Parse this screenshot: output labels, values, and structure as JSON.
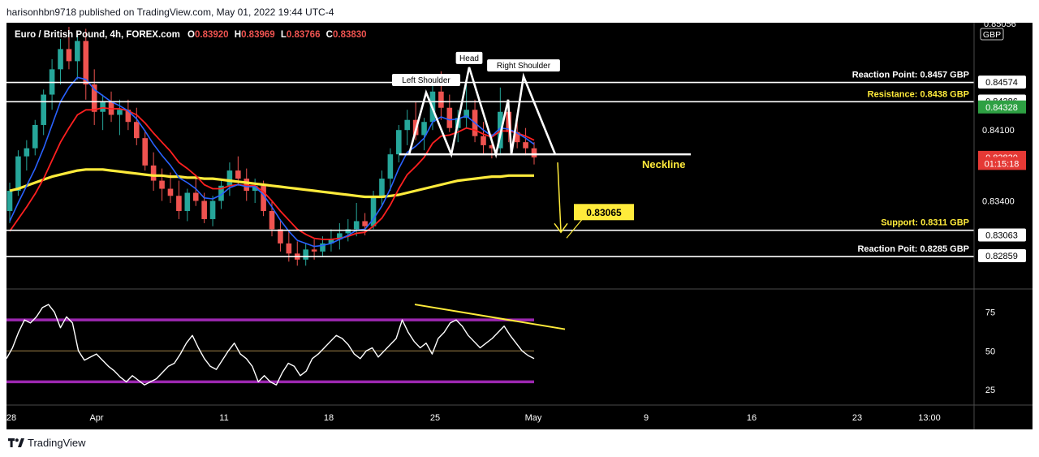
{
  "header": {
    "publish_line": "harisonhbn9718 published on TradingView.com, May 01, 2022 19:44 UTC-4"
  },
  "footer": {
    "brand": "TradingView"
  },
  "legend": {
    "symbol": "Euro / British Pound, 4h, FOREX.com",
    "o_label": "O",
    "o_value": "0.83920",
    "h_label": "H",
    "h_value": "0.83969",
    "l_label": "L",
    "l_value": "0.83766",
    "c_label": "C",
    "c_value": "0.83830"
  },
  "colors": {
    "up": "#26a69a",
    "down": "#ef5350",
    "ema_fast": "#2962ff",
    "ema_mid": "#ff2020",
    "ma_slow": "#ffeb3b",
    "level_line": "#ffffff",
    "rsi_band": "#9c27b0",
    "annotation_yellow": "#ffeb3b",
    "resistance_badge": "#2ea043",
    "price_badge": "#e53935"
  },
  "chart_data": [
    {
      "type": "candlestick",
      "symbol": "Euro / British Pound",
      "timeframe": "4h",
      "exchange": "FOREX.com",
      "price_axis_ticks": [
        "0.84100",
        "0.83400"
      ],
      "price_axis_labels": [
        {
          "text": "0.84574",
          "value": 0.84574,
          "style": "plain"
        },
        {
          "text": "0.84386",
          "value": 0.84386,
          "style": "plain"
        },
        {
          "text": "0.84328",
          "value": 0.84328,
          "style": "green"
        },
        {
          "text": "0.83830",
          "value": 0.8383,
          "style": "red"
        },
        {
          "text": "01:15:18",
          "value": 0.8377,
          "style": "red"
        },
        {
          "text": "0.83063",
          "value": 0.83063,
          "style": "plain"
        },
        {
          "text": "0.82859",
          "value": 0.82859,
          "style": "plain"
        }
      ],
      "price_axis_top_partial": "0.85056",
      "currency_tag": "GBP",
      "ylim": [
        0.8253,
        0.8516
      ],
      "x_ticks": [
        "28",
        "Apr",
        "11",
        "18",
        "25",
        "May",
        "9",
        "16",
        "23",
        "13:00"
      ],
      "levels": [
        {
          "label": "Reaction Point: 0.8457 GBP",
          "value": 0.8457,
          "color": "white"
        },
        {
          "label": "Resistance: 0.8438 GBP",
          "value": 0.8438,
          "color": "yellow"
        },
        {
          "label": "Support: 0.8311 GBP",
          "value": 0.8311,
          "color": "yellow"
        },
        {
          "label": "Reaction Poit: 0.8285 GBP",
          "value": 0.8285,
          "color": "white"
        }
      ],
      "pattern": {
        "left_shoulder": "Left Shoulder",
        "head": "Head",
        "right_shoulder": "Right Shoulder",
        "neckline": "Neckline",
        "neckline_value": 0.8386,
        "target_label": "0.83065",
        "target_value": 0.83065
      },
      "candles": [
        [
          0.833,
          0.8358,
          0.8318,
          0.835
        ],
        [
          0.835,
          0.839,
          0.8345,
          0.8384
        ],
        [
          0.8384,
          0.84,
          0.837,
          0.8392
        ],
        [
          0.8392,
          0.842,
          0.8385,
          0.8415
        ],
        [
          0.8415,
          0.845,
          0.8405,
          0.8445
        ],
        [
          0.8445,
          0.848,
          0.843,
          0.847
        ],
        [
          0.847,
          0.85,
          0.8455,
          0.849
        ],
        [
          0.849,
          0.8512,
          0.847,
          0.8478
        ],
        [
          0.8478,
          0.8505,
          0.846,
          0.8498
        ],
        [
          0.8498,
          0.851,
          0.844,
          0.8455
        ],
        [
          0.8455,
          0.847,
          0.8415,
          0.8428
        ],
        [
          0.8428,
          0.8445,
          0.841,
          0.8438
        ],
        [
          0.8438,
          0.8448,
          0.8418,
          0.8425
        ],
        [
          0.8425,
          0.844,
          0.8405,
          0.843
        ],
        [
          0.843,
          0.844,
          0.841,
          0.8418
        ],
        [
          0.8418,
          0.8432,
          0.8395,
          0.8402
        ],
        [
          0.8402,
          0.841,
          0.837,
          0.8375
        ],
        [
          0.8375,
          0.8388,
          0.835,
          0.836
        ],
        [
          0.836,
          0.8372,
          0.834,
          0.8352
        ],
        [
          0.8352,
          0.8368,
          0.8338,
          0.8345
        ],
        [
          0.8345,
          0.836,
          0.8322,
          0.833
        ],
        [
          0.833,
          0.8352,
          0.832,
          0.8348
        ],
        [
          0.8348,
          0.8365,
          0.8335,
          0.834
        ],
        [
          0.834,
          0.8348,
          0.8318,
          0.8322
        ],
        [
          0.8322,
          0.8345,
          0.8315,
          0.834
        ],
        [
          0.834,
          0.836,
          0.8332,
          0.8355
        ],
        [
          0.8355,
          0.8378,
          0.8345,
          0.837
        ],
        [
          0.837,
          0.8384,
          0.8355,
          0.8362
        ],
        [
          0.8362,
          0.8372,
          0.834,
          0.835
        ],
        [
          0.835,
          0.8362,
          0.8338,
          0.8355
        ],
        [
          0.8355,
          0.836,
          0.8325,
          0.833
        ],
        [
          0.833,
          0.834,
          0.8305,
          0.8312
        ],
        [
          0.8312,
          0.8322,
          0.829,
          0.8298
        ],
        [
          0.8298,
          0.831,
          0.828,
          0.8288
        ],
        [
          0.8288,
          0.83,
          0.8276,
          0.8282
        ],
        [
          0.8282,
          0.8298,
          0.8276,
          0.8292
        ],
        [
          0.8292,
          0.8302,
          0.8282,
          0.829
        ],
        [
          0.829,
          0.8305,
          0.8285,
          0.8298
        ],
        [
          0.8298,
          0.8312,
          0.829,
          0.8302
        ],
        [
          0.8302,
          0.8318,
          0.8292,
          0.8308
        ],
        [
          0.8308,
          0.8322,
          0.83,
          0.8312
        ],
        [
          0.8312,
          0.8338,
          0.8305,
          0.832
        ],
        [
          0.832,
          0.8328,
          0.8306,
          0.8315
        ],
        [
          0.8315,
          0.835,
          0.8312,
          0.8345
        ],
        [
          0.8345,
          0.837,
          0.8335,
          0.8362
        ],
        [
          0.8362,
          0.8392,
          0.835,
          0.8386
        ],
        [
          0.8386,
          0.8415,
          0.8378,
          0.841
        ],
        [
          0.841,
          0.843,
          0.8395,
          0.842
        ],
        [
          0.842,
          0.8438,
          0.84,
          0.8405
        ],
        [
          0.8405,
          0.8422,
          0.839,
          0.8418
        ],
        [
          0.8418,
          0.8455,
          0.841,
          0.8448
        ],
        [
          0.8448,
          0.8468,
          0.842,
          0.8432
        ],
        [
          0.8432,
          0.8445,
          0.8408,
          0.8412
        ],
        [
          0.8412,
          0.843,
          0.8398,
          0.8422
        ],
        [
          0.8422,
          0.8458,
          0.8412,
          0.843
        ],
        [
          0.843,
          0.844,
          0.8398,
          0.8404
        ],
        [
          0.8404,
          0.8418,
          0.8386,
          0.8395
        ],
        [
          0.8395,
          0.8406,
          0.8382,
          0.8392
        ],
        [
          0.8392,
          0.8452,
          0.8385,
          0.8428
        ],
        [
          0.8428,
          0.844,
          0.8398,
          0.8408
        ],
        [
          0.8408,
          0.842,
          0.8392,
          0.8398
        ],
        [
          0.8398,
          0.8412,
          0.8385,
          0.8392
        ],
        [
          0.8392,
          0.8398,
          0.8376,
          0.8383
        ]
      ],
      "series": [
        {
          "kind": "ema_fast",
          "values": [
            0.832,
            0.8338,
            0.8355,
            0.8372,
            0.8392,
            0.8415,
            0.8438,
            0.8452,
            0.8462,
            0.846,
            0.845,
            0.8444,
            0.8438,
            0.8434,
            0.8429,
            0.8421,
            0.8409,
            0.8396,
            0.8385,
            0.8375,
            0.8363,
            0.8358,
            0.8352,
            0.8343,
            0.8342,
            0.8346,
            0.8353,
            0.8356,
            0.8354,
            0.8354,
            0.8346,
            0.8334,
            0.8321,
            0.831,
            0.8301,
            0.8298,
            0.8295,
            0.8296,
            0.8298,
            0.8302,
            0.8306,
            0.8311,
            0.8312,
            0.8322,
            0.8335,
            0.8352,
            0.8372,
            0.8388,
            0.8394,
            0.8402,
            0.8418,
            0.8423,
            0.842,
            0.8421,
            0.8424,
            0.8417,
            0.841,
            0.8404,
            0.8412,
            0.8411,
            0.8407,
            0.8402,
            0.8396
          ]
        },
        {
          "kind": "ema_mid",
          "values": [
            0.831,
            0.8322,
            0.8334,
            0.8347,
            0.8362,
            0.838,
            0.8398,
            0.8412,
            0.8425,
            0.843,
            0.843,
            0.8432,
            0.8431,
            0.8431,
            0.8429,
            0.8425,
            0.8417,
            0.8407,
            0.8398,
            0.8389,
            0.8378,
            0.8372,
            0.8365,
            0.8356,
            0.8352,
            0.8352,
            0.8355,
            0.8356,
            0.8355,
            0.8355,
            0.8349,
            0.834,
            0.833,
            0.8321,
            0.8312,
            0.8307,
            0.8303,
            0.8302,
            0.8302,
            0.8303,
            0.8305,
            0.8308,
            0.8309,
            0.8315,
            0.8323,
            0.8336,
            0.8352,
            0.8366,
            0.8374,
            0.8383,
            0.8397,
            0.8404,
            0.8405,
            0.8408,
            0.8412,
            0.841,
            0.8406,
            0.8403,
            0.8409,
            0.8409,
            0.8407,
            0.8404,
            0.84
          ]
        },
        {
          "kind": "ma_slow",
          "values": [
            0.835,
            0.8352,
            0.8355,
            0.8358,
            0.8361,
            0.8364,
            0.8366,
            0.8368,
            0.837,
            0.8371,
            0.8371,
            0.8371,
            0.837,
            0.8369,
            0.8368,
            0.8367,
            0.8366,
            0.8365,
            0.8365,
            0.8364,
            0.8364,
            0.8363,
            0.8363,
            0.8362,
            0.8362,
            0.8361,
            0.836,
            0.8359,
            0.8358,
            0.8357,
            0.8356,
            0.8355,
            0.8354,
            0.8353,
            0.8352,
            0.8351,
            0.835,
            0.8349,
            0.8348,
            0.8347,
            0.8346,
            0.8345,
            0.8344,
            0.8344,
            0.8344,
            0.8345,
            0.8346,
            0.8348,
            0.835,
            0.8352,
            0.8354,
            0.8356,
            0.8358,
            0.836,
            0.8361,
            0.8362,
            0.8363,
            0.8364,
            0.8364,
            0.8365,
            0.8365,
            0.8365,
            0.8365
          ]
        }
      ]
    },
    {
      "type": "line",
      "indicator": "RSI",
      "ylim": [
        15,
        90
      ],
      "y_ticks": [
        "75",
        "50",
        "25"
      ],
      "bands": [
        70,
        30
      ],
      "midline": 50,
      "trendline": [
        [
          0,
          80
        ],
        [
          1,
          64
        ]
      ],
      "values": [
        45,
        52,
        62,
        70,
        68,
        72,
        78,
        80,
        75,
        65,
        72,
        68,
        50,
        44,
        46,
        48,
        44,
        40,
        37,
        33,
        30,
        34,
        31,
        28,
        30,
        32,
        36,
        40,
        42,
        48,
        55,
        60,
        52,
        45,
        40,
        38,
        44,
        50,
        55,
        48,
        45,
        40,
        30,
        34,
        30,
        28,
        36,
        42,
        40,
        34,
        37,
        45,
        48,
        52,
        56,
        60,
        58,
        54,
        48,
        45,
        50,
        52,
        46,
        50,
        54,
        58,
        70,
        62,
        56,
        52,
        55,
        48,
        58,
        62,
        68,
        70,
        66,
        60,
        56,
        52,
        55,
        58,
        62,
        66,
        60,
        55,
        50,
        47,
        45
      ]
    }
  ]
}
